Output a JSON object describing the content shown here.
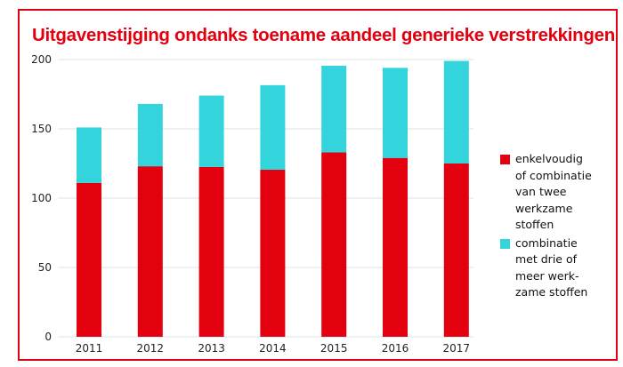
{
  "chart_data": {
    "type": "bar",
    "stacked": true,
    "title": "Uitgavenstijging ondanks toename aandeel generieke verstrekkingen",
    "xlabel": "",
    "ylabel": "",
    "categories": [
      "2011",
      "2012",
      "2013",
      "2014",
      "2015",
      "2016",
      "2017"
    ],
    "series": [
      {
        "name": "enkelvoudig of combinatie van twee werkzame stoffen",
        "color": "#e3000f",
        "values": [
          111,
          123,
          122.5,
          120.5,
          133,
          129,
          125
        ]
      },
      {
        "name": "combinatie met drie of meer werk-zame stoffen",
        "color": "#33d4dc",
        "values": [
          40,
          45,
          51.5,
          61,
          62.5,
          65,
          74
        ]
      }
    ],
    "ylim": [
      0,
      200
    ],
    "yticks": [
      "0",
      "50",
      "100",
      "150",
      "200"
    ],
    "grid": true,
    "legend_position": "right",
    "legend_lines": [
      [
        "enkelvoudig",
        "of combinatie",
        "van twee",
        "werkzame",
        "stoffen"
      ],
      [
        "combinatie",
        "met drie of",
        "meer werk-",
        "zame stoffen"
      ]
    ]
  }
}
